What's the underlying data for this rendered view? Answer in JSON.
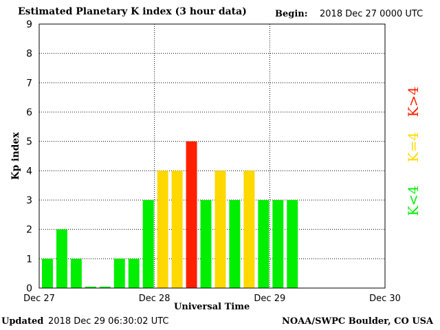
{
  "header": {
    "title": "Estimated Planetary K index (3 hour data)",
    "begin_label": "Begin:",
    "begin_value": "2018 Dec 27 0000 UTC"
  },
  "footer": {
    "updated_label": "Updated",
    "updated_value": "2018 Dec 29 06:30:02 UTC",
    "credit": "NOAA/SWPC Boulder, CO USA"
  },
  "legend": {
    "less": "K<4",
    "equal": "K=4",
    "greater": "K>4"
  },
  "colors": {
    "less": "#00ee00",
    "equal": "#ffd800",
    "greater": "#ff2000"
  },
  "chart_data": {
    "type": "bar",
    "title": "Estimated Planetary K index (3 hour data)",
    "xlabel": "Universal Time",
    "ylabel": "Kp index",
    "ylim": [
      0,
      9
    ],
    "yticks": [
      "0",
      "1",
      "2",
      "3",
      "4",
      "5",
      "6",
      "7",
      "8",
      "9"
    ],
    "xticks": [
      "Dec 27",
      "Dec 28",
      "Dec 29",
      "Dec 30"
    ],
    "grid": true,
    "bin_hours": 3,
    "values": [
      1,
      2,
      1,
      0.05,
      0.05,
      1,
      1,
      3,
      4,
      4,
      5,
      3,
      4,
      3,
      4,
      3,
      3,
      3
    ]
  }
}
